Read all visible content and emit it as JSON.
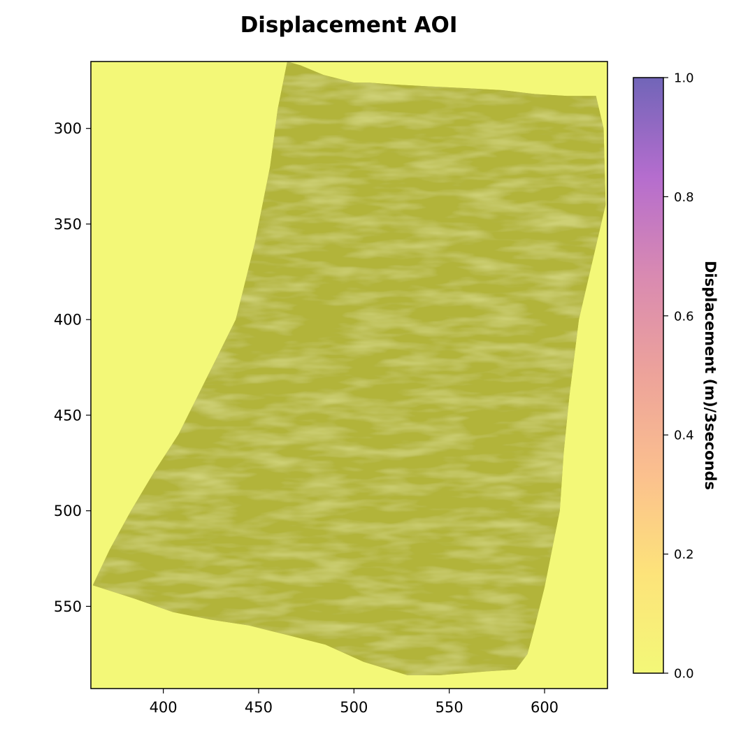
{
  "chart_data": {
    "type": "heatmap",
    "title": "Displacement AOI",
    "xlabel": "",
    "ylabel": "",
    "xlim": [
      362,
      633
    ],
    "ylim": [
      593,
      265
    ],
    "y_inverted": true,
    "x_ticks": [
      400,
      450,
      500,
      550,
      600
    ],
    "y_ticks": [
      300,
      350,
      400,
      450,
      500,
      550
    ],
    "grid": false,
    "colorbar": {
      "label": "Displacement (m)/3seconds",
      "range": [
        0.0,
        1.0
      ],
      "ticks": [
        "0.0",
        "0.2",
        "0.4",
        "0.6",
        "0.8",
        "1.0"
      ],
      "tick_values": [
        0.0,
        0.2,
        0.4,
        0.6,
        0.8,
        1.0
      ],
      "colors": [
        "#f3f878",
        "#fde37a",
        "#fbc08e",
        "#eda39a",
        "#d98ab1",
        "#b56dce",
        "#7165b8"
      ]
    },
    "background_color": "#f3f878",
    "data_region": {
      "description_value": 0.0,
      "fill_color": "#b2b43a",
      "outline": [
        [
          465,
          265
        ],
        [
          472,
          267
        ],
        [
          484,
          272
        ],
        [
          492,
          274
        ],
        [
          500,
          276
        ],
        [
          508,
          276
        ],
        [
          520,
          277
        ],
        [
          540,
          278
        ],
        [
          560,
          279
        ],
        [
          578,
          280
        ],
        [
          595,
          282
        ],
        [
          612,
          283
        ],
        [
          627,
          283
        ],
        [
          631,
          300
        ],
        [
          632,
          340
        ],
        [
          625,
          370
        ],
        [
          618,
          400
        ],
        [
          613,
          440
        ],
        [
          610,
          470
        ],
        [
          608,
          500
        ],
        [
          604,
          520
        ],
        [
          600,
          540
        ],
        [
          595,
          560
        ],
        [
          591,
          575
        ],
        [
          585,
          583
        ],
        [
          570,
          584
        ],
        [
          545,
          586
        ],
        [
          528,
          586
        ],
        [
          505,
          579
        ],
        [
          485,
          570
        ],
        [
          465,
          565
        ],
        [
          445,
          560
        ],
        [
          425,
          557
        ],
        [
          405,
          553
        ],
        [
          385,
          546
        ],
        [
          363,
          539
        ],
        [
          372,
          520
        ],
        [
          383,
          500
        ],
        [
          395,
          480
        ],
        [
          408,
          460
        ],
        [
          418,
          440
        ],
        [
          428,
          420
        ],
        [
          438,
          400
        ],
        [
          443,
          380
        ],
        [
          448,
          360
        ],
        [
          452,
          340
        ],
        [
          456,
          320
        ],
        [
          460,
          290
        ]
      ]
    }
  }
}
